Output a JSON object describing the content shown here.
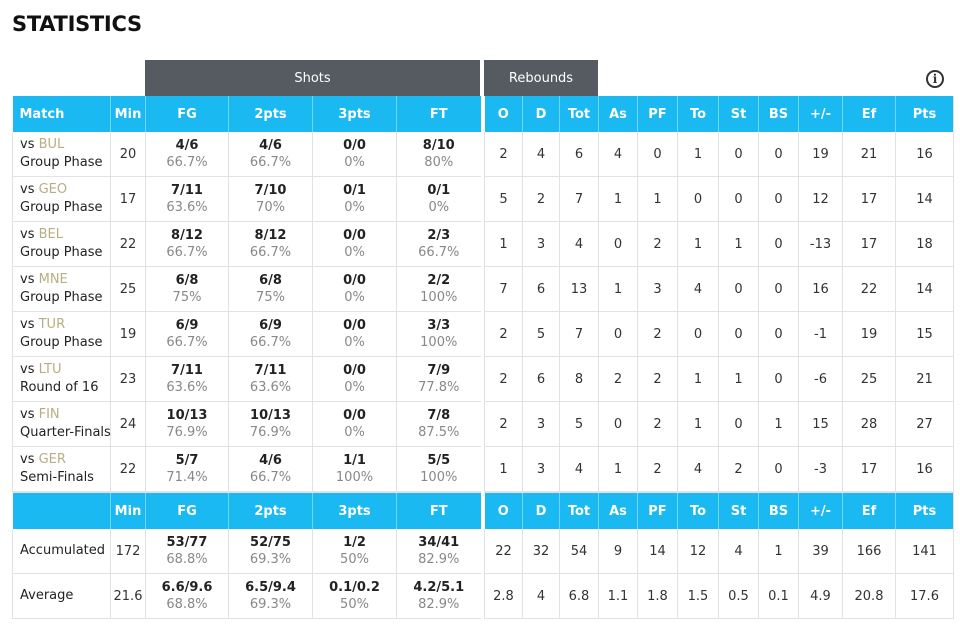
{
  "page_title": "STATISTICS",
  "groups": {
    "shots": "Shots",
    "rebounds": "Rebounds"
  },
  "info_icon": "info-icon",
  "left_headers": [
    "Match",
    "Min",
    "FG",
    "2pts",
    "3pts",
    "FT"
  ],
  "right_headers": [
    "O",
    "D",
    "Tot",
    "As",
    "PF",
    "To",
    "St",
    "BS",
    "+/-",
    "Ef",
    "Pts"
  ],
  "games": [
    {
      "vs": "vs ",
      "opp": "BUL",
      "phase": "Group Phase",
      "min": "20",
      "fg": [
        "4/6",
        "66.7%"
      ],
      "p2": [
        "4/6",
        "66.7%"
      ],
      "p3": [
        "0/0",
        "0%"
      ],
      "ft": [
        "8/10",
        "80%"
      ],
      "stats": [
        "2",
        "4",
        "6",
        "4",
        "0",
        "1",
        "0",
        "0",
        "19",
        "21",
        "16"
      ]
    },
    {
      "vs": "vs ",
      "opp": "GEO",
      "phase": "Group Phase",
      "min": "17",
      "fg": [
        "7/11",
        "63.6%"
      ],
      "p2": [
        "7/10",
        "70%"
      ],
      "p3": [
        "0/1",
        "0%"
      ],
      "ft": [
        "0/1",
        "0%"
      ],
      "stats": [
        "5",
        "2",
        "7",
        "1",
        "1",
        "0",
        "0",
        "0",
        "12",
        "17",
        "14"
      ]
    },
    {
      "vs": "vs ",
      "opp": "BEL",
      "phase": "Group Phase",
      "min": "22",
      "fg": [
        "8/12",
        "66.7%"
      ],
      "p2": [
        "8/12",
        "66.7%"
      ],
      "p3": [
        "0/0",
        "0%"
      ],
      "ft": [
        "2/3",
        "66.7%"
      ],
      "stats": [
        "1",
        "3",
        "4",
        "0",
        "2",
        "1",
        "1",
        "0",
        "-13",
        "17",
        "18"
      ]
    },
    {
      "vs": "vs ",
      "opp": "MNE",
      "phase": "Group Phase",
      "min": "25",
      "fg": [
        "6/8",
        "75%"
      ],
      "p2": [
        "6/8",
        "75%"
      ],
      "p3": [
        "0/0",
        "0%"
      ],
      "ft": [
        "2/2",
        "100%"
      ],
      "stats": [
        "7",
        "6",
        "13",
        "1",
        "3",
        "4",
        "0",
        "0",
        "16",
        "22",
        "14"
      ]
    },
    {
      "vs": "vs ",
      "opp": "TUR",
      "phase": "Group Phase",
      "min": "19",
      "fg": [
        "6/9",
        "66.7%"
      ],
      "p2": [
        "6/9",
        "66.7%"
      ],
      "p3": [
        "0/0",
        "0%"
      ],
      "ft": [
        "3/3",
        "100%"
      ],
      "stats": [
        "2",
        "5",
        "7",
        "0",
        "2",
        "0",
        "0",
        "0",
        "-1",
        "19",
        "15"
      ]
    },
    {
      "vs": "vs ",
      "opp": "LTU",
      "phase": "Round of 16",
      "min": "23",
      "fg": [
        "7/11",
        "63.6%"
      ],
      "p2": [
        "7/11",
        "63.6%"
      ],
      "p3": [
        "0/0",
        "0%"
      ],
      "ft": [
        "7/9",
        "77.8%"
      ],
      "stats": [
        "2",
        "6",
        "8",
        "2",
        "2",
        "1",
        "1",
        "0",
        "-6",
        "25",
        "21"
      ]
    },
    {
      "vs": "vs ",
      "opp": "FIN",
      "phase": "Quarter-Finals",
      "min": "24",
      "fg": [
        "10/13",
        "76.9%"
      ],
      "p2": [
        "10/13",
        "76.9%"
      ],
      "p3": [
        "0/0",
        "0%"
      ],
      "ft": [
        "7/8",
        "87.5%"
      ],
      "stats": [
        "2",
        "3",
        "5",
        "0",
        "2",
        "1",
        "0",
        "1",
        "15",
        "28",
        "27"
      ]
    },
    {
      "vs": "vs ",
      "opp": "GER",
      "phase": "Semi-Finals",
      "min": "22",
      "fg": [
        "5/7",
        "71.4%"
      ],
      "p2": [
        "4/6",
        "66.7%"
      ],
      "p3": [
        "1/1",
        "100%"
      ],
      "ft": [
        "5/5",
        "100%"
      ],
      "stats": [
        "1",
        "3",
        "4",
        "1",
        "2",
        "4",
        "2",
        "0",
        "-3",
        "17",
        "16"
      ]
    }
  ],
  "summary_left_headers": [
    "",
    "Min",
    "FG",
    "2pts",
    "3pts",
    "FT"
  ],
  "summary": [
    {
      "label": "Accumulated",
      "min": "172",
      "fg": [
        "53/77",
        "68.8%"
      ],
      "p2": [
        "52/75",
        "69.3%"
      ],
      "p3": [
        "1/2",
        "50%"
      ],
      "ft": [
        "34/41",
        "82.9%"
      ],
      "stats": [
        "22",
        "32",
        "54",
        "9",
        "14",
        "12",
        "4",
        "1",
        "39",
        "166",
        "141"
      ]
    },
    {
      "label": "Average",
      "min": "21.6",
      "fg": [
        "6.6/9.6",
        "68.8%"
      ],
      "p2": [
        "6.5/9.4",
        "69.3%"
      ],
      "p3": [
        "0.1/0.2",
        "50%"
      ],
      "ft": [
        "4.2/5.1",
        "82.9%"
      ],
      "stats": [
        "2.8",
        "4",
        "6.8",
        "1.1",
        "1.8",
        "1.5",
        "0.5",
        "0.1",
        "4.9",
        "20.8",
        "17.6"
      ]
    }
  ]
}
